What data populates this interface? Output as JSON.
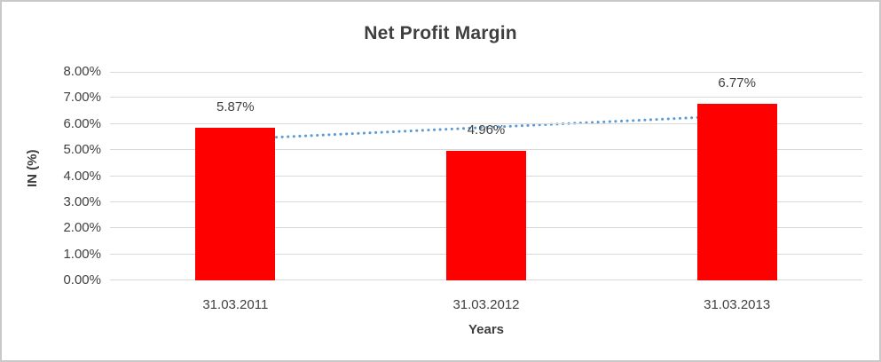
{
  "chart_data": {
    "type": "bar",
    "title": "Net Profit Margin",
    "categories": [
      "31.03.2011",
      "31.03.2012",
      "31.03.2013"
    ],
    "values": [
      5.87,
      4.96,
      6.77
    ],
    "data_labels": [
      "5.87%",
      "4.96%",
      "6.77%"
    ],
    "xlabel": "Years",
    "ylabel": "IN (%)",
    "ylim": [
      0,
      8
    ],
    "ytick_step": 1,
    "ytick_labels": [
      "0.00%",
      "1.00%",
      "2.00%",
      "3.00%",
      "4.00%",
      "5.00%",
      "6.00%",
      "7.00%",
      "8.00%"
    ],
    "grid": true,
    "legend": "none",
    "colors": {
      "bar": "#FF0000",
      "trendline": "#5B9BD5",
      "text": "#404040",
      "gridline": "#D9D9D9",
      "border": "#C9C9C9",
      "background": "#FFFFFF"
    },
    "trendline": {
      "type": "linear",
      "style": "dotted",
      "start_value": 5.42,
      "end_value": 6.32
    }
  }
}
